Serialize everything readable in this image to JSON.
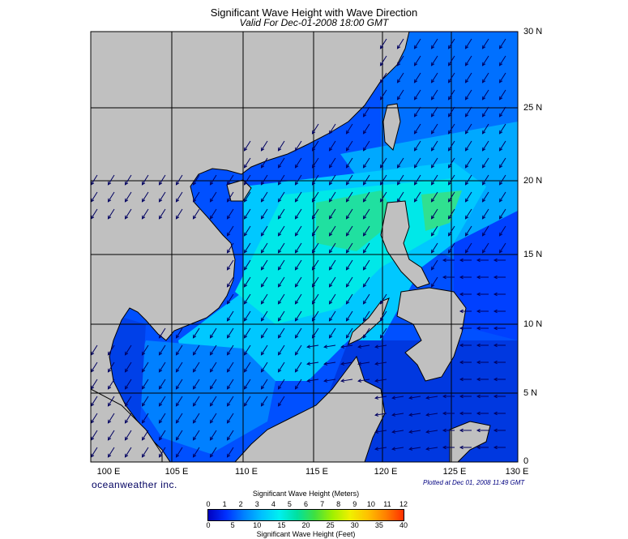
{
  "title": "Significant Wave Height with Wave Direction",
  "subtitle": "Valid For Dec-01-2008 18:00 GMT",
  "lat_labels": [
    "30 N",
    "25 N",
    "20 N",
    "15 N",
    "10 N",
    "5 N",
    "0"
  ],
  "lon_labels": [
    "100 E",
    "105 E",
    "110 E",
    "115 E",
    "120 E",
    "125 E",
    "130 E"
  ],
  "brand": "oceanweather inc.",
  "plotted": "Plotted at Dec 01, 2008 11:49 GMT",
  "legend": {
    "title_meters": "Significant Wave Height (Meters)",
    "title_feet": "Significant Wave Height (Feet)",
    "meter_ticks": [
      "0",
      "1",
      "2",
      "3",
      "4",
      "5",
      "6",
      "7",
      "8",
      "9",
      "10",
      "11",
      "12"
    ],
    "feet_ticks": [
      "0",
      "5",
      "10",
      "15",
      "20",
      "25",
      "30",
      "35",
      "40"
    ]
  },
  "colors": {
    "land": "#c0c0c0",
    "deep_blue": "#0000c8",
    "blue": "#0040ff",
    "cyan_blue": "#0090ff",
    "cyan": "#00e0f0",
    "green": "#20e080",
    "arrow": "#000060"
  }
}
